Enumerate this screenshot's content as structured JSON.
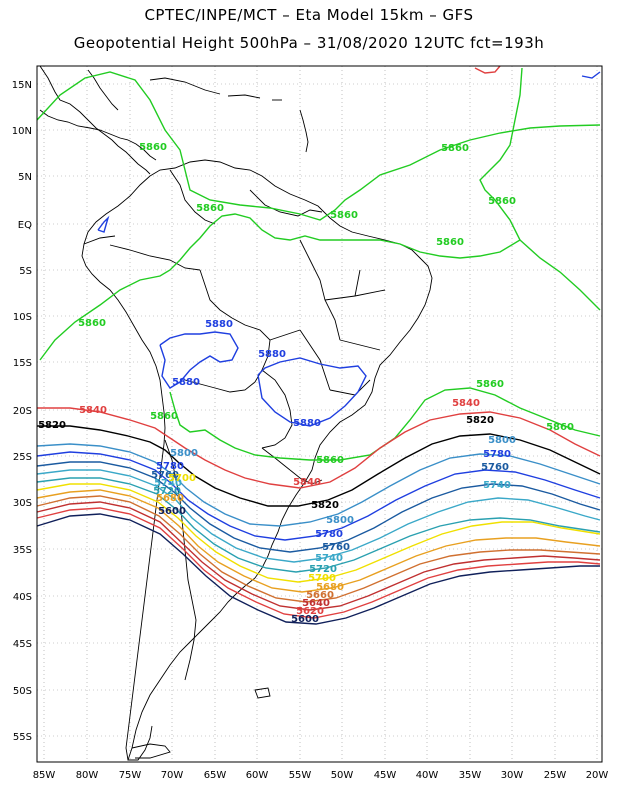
{
  "header": {
    "line1": "CPTEC/INPE/MCT –  Eta Model 15km – GFS",
    "line2": "Geopotential Height 500hPa – 31/08/2020 12UTC fct=193h"
  },
  "map": {
    "lon_labels": [
      "85W",
      "80W",
      "75W",
      "70W",
      "65W",
      "60W",
      "55W",
      "50W",
      "45W",
      "40W",
      "35W",
      "30W",
      "25W",
      "20W"
    ],
    "lat_labels": [
      "15N",
      "10N",
      "5N",
      "EQ",
      "5S",
      "10S",
      "15S",
      "20S",
      "25S",
      "30S",
      "35S",
      "40S",
      "45S",
      "50S",
      "55S"
    ],
    "colors": {
      "5860": "#22cc22",
      "5880": "#1f3fe0",
      "5840": "#e04040",
      "5820": "#000000",
      "5800": "#3a8fc8",
      "5780": "#1f3fe0",
      "5760": "#1a5aa0",
      "5740": "#3aa8c8",
      "5720": "#2aa0b0",
      "5700": "#f0e000",
      "5680": "#e8a020",
      "5660": "#d07030",
      "5640": "#c03030",
      "5620": "#e04040",
      "5600": "#10205a",
      "coast": "#000000",
      "grid": "#999999"
    },
    "contour_labels": [
      {
        "text": "5860",
        "level": "5860"
      },
      {
        "text": "5860",
        "level": "5860"
      },
      {
        "text": "5860",
        "level": "5860"
      },
      {
        "text": "5860",
        "level": "5860"
      },
      {
        "text": "5860",
        "level": "5860"
      },
      {
        "text": "5860",
        "level": "5860"
      },
      {
        "text": "5860",
        "level": "5860"
      },
      {
        "text": "5860",
        "level": "5860"
      },
      {
        "text": "5860",
        "level": "5860"
      },
      {
        "text": "5860",
        "level": "5860"
      },
      {
        "text": "5860",
        "level": "5860"
      },
      {
        "text": "5880",
        "level": "5880"
      },
      {
        "text": "5880",
        "level": "5880"
      },
      {
        "text": "5880",
        "level": "5880"
      },
      {
        "text": "5880",
        "level": "5880"
      },
      {
        "text": "5840",
        "level": "5840"
      },
      {
        "text": "5840",
        "level": "5840"
      },
      {
        "text": "5840",
        "level": "5840"
      },
      {
        "text": "5820",
        "level": "5820"
      },
      {
        "text": "5820",
        "level": "5820"
      },
      {
        "text": "5820",
        "level": "5820"
      },
      {
        "text": "5800",
        "level": "5800"
      },
      {
        "text": "5800",
        "level": "5800"
      },
      {
        "text": "5800",
        "level": "5800"
      },
      {
        "text": "5780",
        "level": "5780"
      },
      {
        "text": "5780",
        "level": "5780"
      },
      {
        "text": "5780",
        "level": "5780"
      },
      {
        "text": "5760",
        "level": "5760"
      },
      {
        "text": "5760",
        "level": "5760"
      },
      {
        "text": "5760",
        "level": "5760"
      },
      {
        "text": "5740",
        "level": "5740"
      },
      {
        "text": "5740",
        "level": "5740"
      },
      {
        "text": "5740",
        "level": "5740"
      },
      {
        "text": "5720",
        "level": "5720"
      },
      {
        "text": "5720",
        "level": "5720"
      },
      {
        "text": "5700",
        "level": "5700"
      },
      {
        "text": "5700",
        "level": "5700"
      },
      {
        "text": "5680",
        "level": "5680"
      },
      {
        "text": "5680",
        "level": "5680"
      },
      {
        "text": "5660",
        "level": "5660"
      },
      {
        "text": "5640",
        "level": "5640"
      },
      {
        "text": "5620",
        "level": "5620"
      },
      {
        "text": "5600",
        "level": "5600"
      },
      {
        "text": "5600",
        "level": "5600"
      }
    ]
  }
}
